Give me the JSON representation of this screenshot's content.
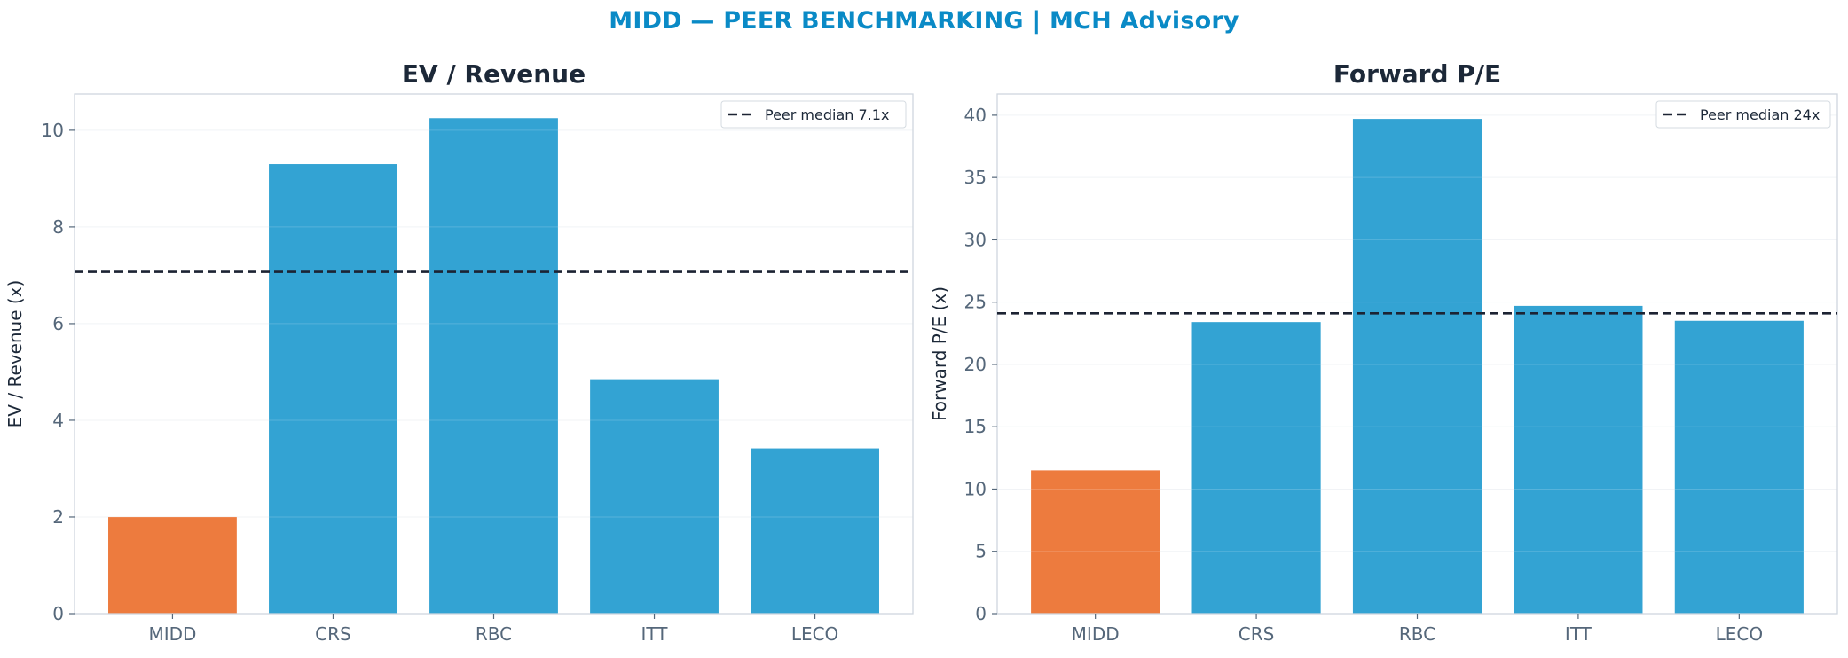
{
  "suptitle": "MIDD — PEER BENCHMARKING | MCH Advisory",
  "colors": {
    "highlight": "#ED7B3E",
    "peer": "#33A3D3",
    "median_line": "#1c2333",
    "title": "#0a8ac6",
    "frame": "#cfd6de"
  },
  "chart_data": [
    {
      "type": "bar",
      "title": "EV / Revenue",
      "xlabel": "",
      "ylabel": "EV / Revenue (x)",
      "categories": [
        "MIDD",
        "CRS",
        "RBC",
        "ITT",
        "LECO"
      ],
      "values": [
        2.0,
        9.3,
        10.25,
        4.85,
        3.42
      ],
      "highlight": "MIDD",
      "ylim": [
        0,
        10.75
      ],
      "yticks": [
        0,
        2,
        4,
        6,
        8,
        10
      ],
      "reference_line": {
        "value": 7.07,
        "label": "Peer median 7.1x",
        "style": "dashed"
      },
      "legend": "top-right",
      "grid": "horizontal"
    },
    {
      "type": "bar",
      "title": "Forward P/E",
      "xlabel": "",
      "ylabel": "Forward P/E (x)",
      "categories": [
        "MIDD",
        "CRS",
        "RBC",
        "ITT",
        "LECO"
      ],
      "values": [
        11.5,
        23.4,
        39.7,
        24.7,
        23.5
      ],
      "highlight": "MIDD",
      "ylim": [
        0,
        41.7
      ],
      "yticks": [
        0,
        5,
        10,
        15,
        20,
        25,
        30,
        35,
        40
      ],
      "reference_line": {
        "value": 24.1,
        "label": "Peer median 24x",
        "style": "dashed"
      },
      "legend": "top-right",
      "grid": "horizontal"
    }
  ]
}
